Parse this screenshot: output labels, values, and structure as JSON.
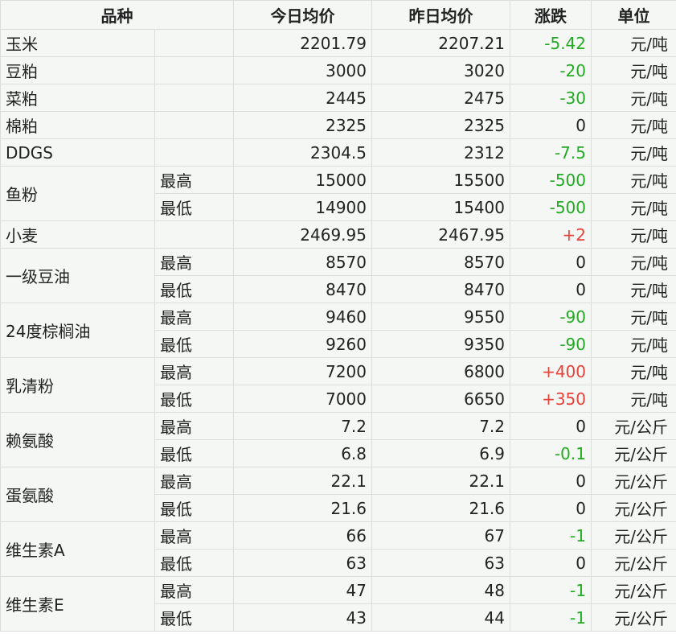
{
  "headers": {
    "variety": "品种",
    "today": "今日均价",
    "yesterday": "昨日均价",
    "change": "涨跌",
    "unit": "单位"
  },
  "colors": {
    "up": "#e8413a",
    "down": "#22aa22"
  },
  "rows": [
    {
      "name": "玉米",
      "sub": [
        {
          "label": "",
          "today": "2201.79",
          "yesterday": "2207.21",
          "change": "-5.42",
          "unit": "元/吨"
        }
      ]
    },
    {
      "name": "豆粕",
      "sub": [
        {
          "label": "",
          "today": "3000",
          "yesterday": "3020",
          "change": "-20",
          "unit": "元/吨"
        }
      ]
    },
    {
      "name": "菜粕",
      "sub": [
        {
          "label": "",
          "today": "2445",
          "yesterday": "2475",
          "change": "-30",
          "unit": "元/吨"
        }
      ]
    },
    {
      "name": "棉粕",
      "sub": [
        {
          "label": "",
          "today": "2325",
          "yesterday": "2325",
          "change": "0",
          "unit": "元/吨"
        }
      ]
    },
    {
      "name": "DDGS",
      "sub": [
        {
          "label": "",
          "today": "2304.5",
          "yesterday": "2312",
          "change": "-7.5",
          "unit": "元/吨"
        }
      ]
    },
    {
      "name": "鱼粉",
      "sub": [
        {
          "label": "最高",
          "today": "15000",
          "yesterday": "15500",
          "change": "-500",
          "unit": "元/吨"
        },
        {
          "label": "最低",
          "today": "14900",
          "yesterday": "15400",
          "change": "-500",
          "unit": "元/吨"
        }
      ]
    },
    {
      "name": "小麦",
      "sub": [
        {
          "label": "",
          "today": "2469.95",
          "yesterday": "2467.95",
          "change": "+2",
          "unit": "元/吨"
        }
      ]
    },
    {
      "name": "一级豆油",
      "sub": [
        {
          "label": "最高",
          "today": "8570",
          "yesterday": "8570",
          "change": "0",
          "unit": "元/吨"
        },
        {
          "label": "最低",
          "today": "8470",
          "yesterday": "8470",
          "change": "0",
          "unit": "元/吨"
        }
      ]
    },
    {
      "name": "24度棕榈油",
      "sub": [
        {
          "label": "最高",
          "today": "9460",
          "yesterday": "9550",
          "change": "-90",
          "unit": "元/吨"
        },
        {
          "label": "最低",
          "today": "9260",
          "yesterday": "9350",
          "change": "-90",
          "unit": "元/吨"
        }
      ]
    },
    {
      "name": "乳清粉",
      "sub": [
        {
          "label": "最高",
          "today": "7200",
          "yesterday": "6800",
          "change": "+400",
          "unit": "元/吨"
        },
        {
          "label": "最低",
          "today": "7000",
          "yesterday": "6650",
          "change": "+350",
          "unit": "元/吨"
        }
      ]
    },
    {
      "name": "赖氨酸",
      "sub": [
        {
          "label": "最高",
          "today": "7.2",
          "yesterday": "7.2",
          "change": "0",
          "unit": "元/公斤"
        },
        {
          "label": "最低",
          "today": "6.8",
          "yesterday": "6.9",
          "change": "-0.1",
          "unit": "元/公斤"
        }
      ]
    },
    {
      "name": "蛋氨酸",
      "sub": [
        {
          "label": "最高",
          "today": "22.1",
          "yesterday": "22.1",
          "change": "0",
          "unit": "元/公斤"
        },
        {
          "label": "最低",
          "today": "21.6",
          "yesterday": "21.6",
          "change": "0",
          "unit": "元/公斤"
        }
      ]
    },
    {
      "name": "维生素A",
      "sub": [
        {
          "label": "最高",
          "today": "66",
          "yesterday": "67",
          "change": "-1",
          "unit": "元/公斤"
        },
        {
          "label": "最低",
          "today": "63",
          "yesterday": "63",
          "change": "0",
          "unit": "元/公斤"
        }
      ]
    },
    {
      "name": "维生素E",
      "sub": [
        {
          "label": "最高",
          "today": "47",
          "yesterday": "48",
          "change": "-1",
          "unit": "元/公斤"
        },
        {
          "label": "最低",
          "today": "43",
          "yesterday": "44",
          "change": "-1",
          "unit": "元/公斤"
        }
      ]
    }
  ]
}
